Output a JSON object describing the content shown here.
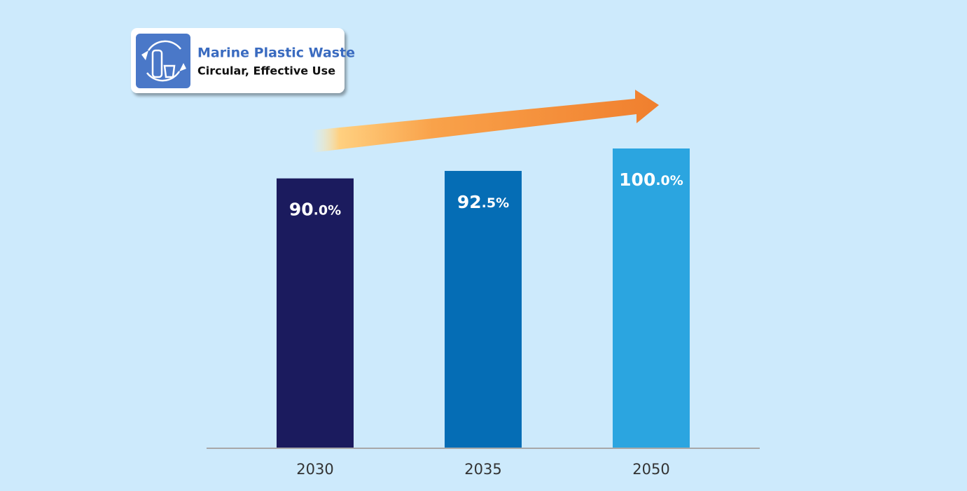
{
  "chart_data": {
    "type": "bar",
    "title": "Marine Plastic Waste",
    "subtitle": "Circular, Effective Use",
    "categories": [
      "2030",
      "2035",
      "2050"
    ],
    "values": [
      90.0,
      92.5,
      100.0
    ],
    "value_labels": [
      "90.0%",
      "92.5%",
      "100.0%"
    ],
    "colors": [
      "#1b1b5e",
      "#056db5",
      "#2ba5e0"
    ]
  }
}
